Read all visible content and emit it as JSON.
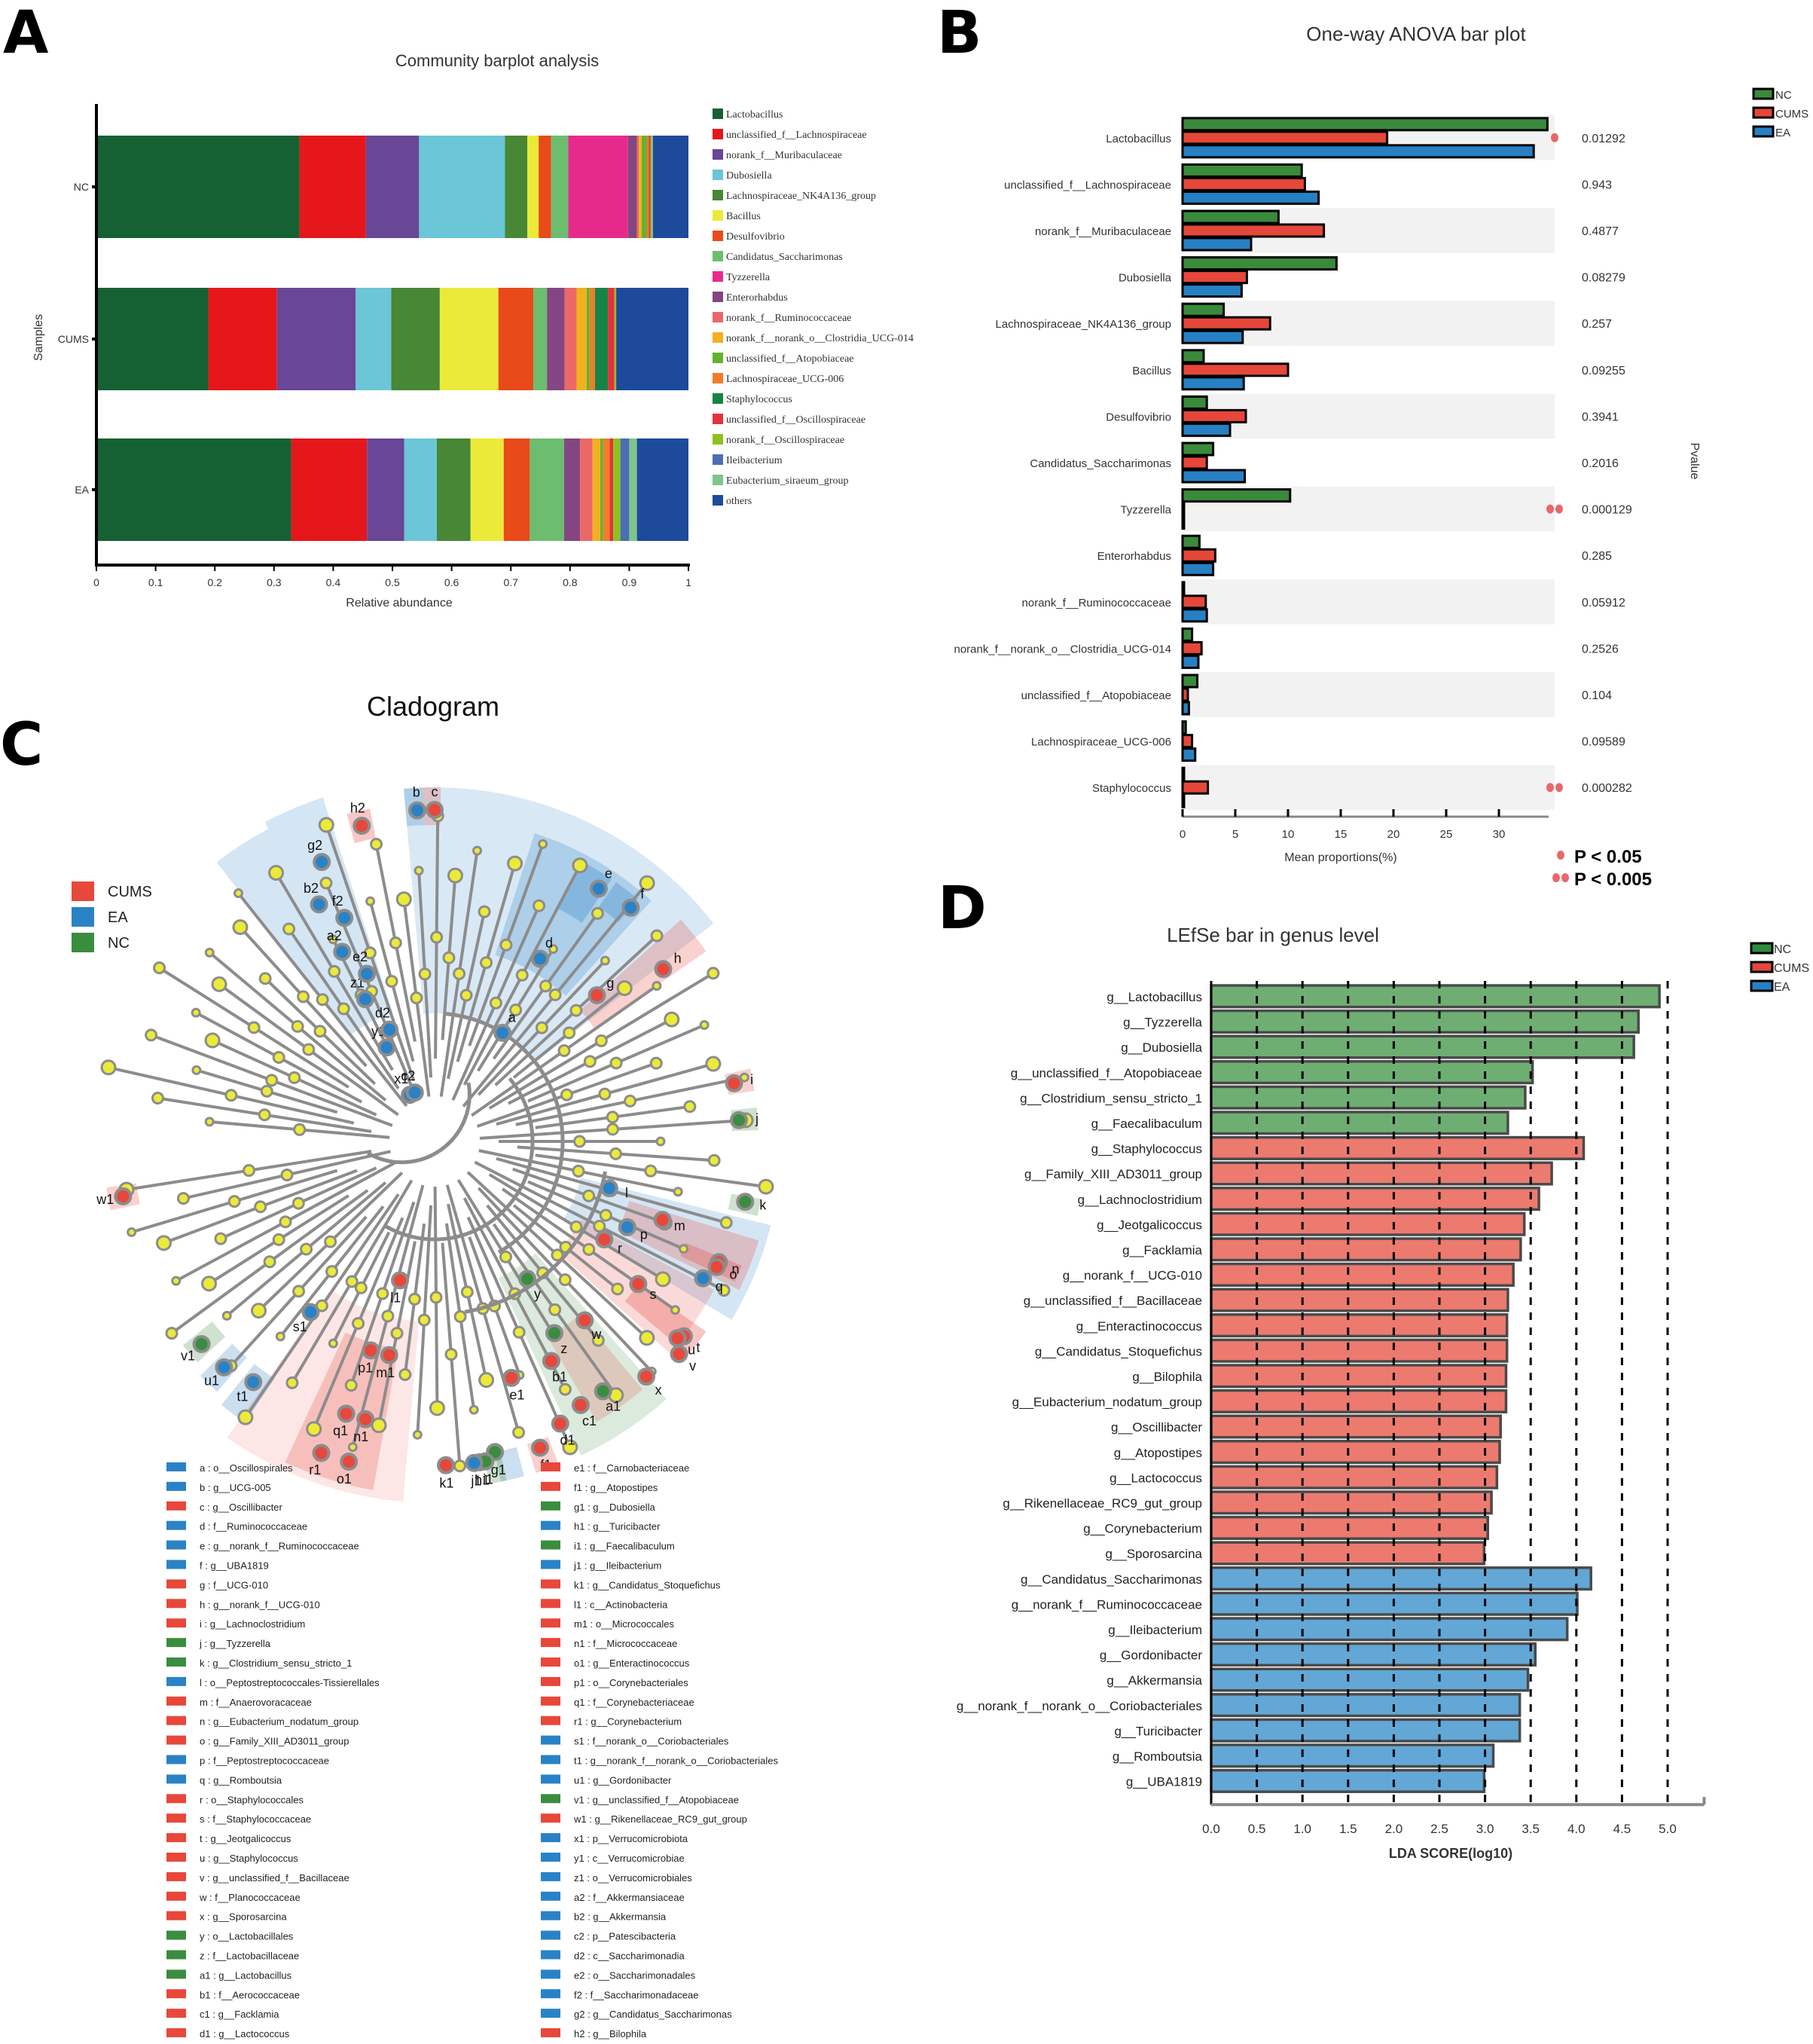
{
  "figure": {
    "panel_letters": [
      "A",
      "B",
      "C",
      "D"
    ]
  },
  "chart_data": [
    {
      "id": "A",
      "type": "bar",
      "orientation": "horizontal-stacked",
      "title": "Community barplot analysis",
      "xlabel": "Relative abundance",
      "ylabel": "Samples",
      "xlim": [
        0,
        1
      ],
      "xticks": [
        "0",
        "0.1",
        "0.2",
        "0.3",
        "0.4",
        "0.5",
        "0.6",
        "0.7",
        "0.8",
        "0.9",
        "1"
      ],
      "categories": [
        "NC",
        "CUMS",
        "EA"
      ],
      "legend_position": "right",
      "series": [
        {
          "name": "Lactobacillus",
          "color": "#156133",
          "values": [
            0.343,
            0.189,
            0.329
          ]
        },
        {
          "name": "unclassified_f__Lachnospiraceae",
          "color": "#e5171b",
          "values": [
            0.112,
            0.116,
            0.128
          ]
        },
        {
          "name": "norank_f__Muribaculaceae",
          "color": "#694696",
          "values": [
            0.09,
            0.133,
            0.063
          ]
        },
        {
          "name": "Dubosiella",
          "color": "#6bc6d7",
          "values": [
            0.145,
            0.06,
            0.055
          ]
        },
        {
          "name": "Lachnospiraceae_NK4A136_group",
          "color": "#478735",
          "values": [
            0.038,
            0.082,
            0.057
          ]
        },
        {
          "name": "Bacillus",
          "color": "#ecea38",
          "values": [
            0.019,
            0.099,
            0.056
          ]
        },
        {
          "name": "Desulfovibrio",
          "color": "#e84a1a",
          "values": [
            0.021,
            0.059,
            0.044
          ]
        },
        {
          "name": "Candidatus_Saccharimonas",
          "color": "#6dbd6f",
          "values": [
            0.029,
            0.023,
            0.058
          ]
        },
        {
          "name": "Tyzzerella",
          "color": "#e62a8b",
          "values": [
            0.101,
            0.0,
            0.0
          ]
        },
        {
          "name": "Enterorhabdus",
          "color": "#844682",
          "values": [
            0.015,
            0.03,
            0.027
          ]
        },
        {
          "name": "norank_f__Ruminococcaceae",
          "color": "#eb6868",
          "values": [
            0.003,
            0.02,
            0.021
          ]
        },
        {
          "name": "norank_f__norank_o__Clostridia_UCG-014",
          "color": "#f2b021",
          "values": [
            0.005,
            0.017,
            0.013
          ]
        },
        {
          "name": "unclassified_f__Atopobiaceae",
          "color": "#66b22e",
          "values": [
            0.009,
            0.005,
            0.005
          ]
        },
        {
          "name": "Lachnospiraceae_UCG-006",
          "color": "#f17c2a",
          "values": [
            0.003,
            0.009,
            0.011
          ]
        },
        {
          "name": "Staphylococcus",
          "color": "#168446",
          "values": [
            0.0,
            0.022,
            0.0
          ]
        },
        {
          "name": "unclassified_f__Oscillospiraceae",
          "color": "#e5323a",
          "values": [
            0.003,
            0.011,
            0.006
          ]
        },
        {
          "name": "norank_f__Oscillospiraceae",
          "color": "#8dc21f",
          "values": [
            0.002,
            0.003,
            0.012
          ]
        },
        {
          "name": "Ileibacterium",
          "color": "#4b6db4",
          "values": [
            0.0,
            0.0,
            0.015
          ]
        },
        {
          "name": "Eubacterium_siraeum_group",
          "color": "#7fc48a",
          "values": [
            0.002,
            0.0,
            0.013
          ]
        },
        {
          "name": "others",
          "color": "#1e4a9c",
          "values": [
            0.06,
            0.122,
            0.087
          ]
        }
      ]
    },
    {
      "id": "B",
      "type": "bar",
      "orientation": "horizontal-grouped",
      "title": "One-way ANOVA bar plot",
      "xlabel": "Mean proportions(%)",
      "ylabel_right": "Pvalue",
      "xlim": [
        0,
        35
      ],
      "xticks": [
        "0",
        "5",
        "10",
        "15",
        "20",
        "25",
        "30"
      ],
      "legend_position": "top-right",
      "groups": [
        {
          "name": "NC",
          "color": "#3a8a3c"
        },
        {
          "name": "CUMS",
          "color": "#e5473a"
        },
        {
          "name": "EA",
          "color": "#2780c4"
        }
      ],
      "categories": [
        "Lactobacillus",
        "unclassified_f__Lachnospiraceae",
        "norank_f__Muribaculaceae",
        "Dubosiella",
        "Lachnospiraceae_NK4A136_group",
        "Bacillus",
        "Desulfovibrio",
        "Candidatus_Saccharimonas",
        "Tyzzerella",
        "Enterorhabdus",
        "norank_f__Ruminococcaceae",
        "norank_f__norank_o__Clostridia_UCG-014",
        "unclassified_f__Atopobiaceae",
        "Lachnospiraceae_UCG-006",
        "Staphylococcus"
      ],
      "series": [
        {
          "name": "NC",
          "values": [
            34.6,
            11.3,
            9.1,
            14.6,
            3.9,
            2.0,
            2.3,
            2.9,
            10.2,
            1.6,
            0.1,
            0.9,
            1.4,
            0.3,
            0.05
          ]
        },
        {
          "name": "CUMS",
          "values": [
            19.4,
            11.6,
            13.4,
            6.1,
            8.3,
            10.0,
            6.0,
            2.3,
            0.05,
            3.1,
            2.2,
            1.8,
            0.5,
            0.9,
            2.4
          ]
        },
        {
          "name": "EA",
          "values": [
            33.3,
            12.9,
            6.5,
            5.6,
            5.7,
            5.8,
            4.5,
            5.9,
            0.05,
            2.9,
            2.3,
            1.5,
            0.6,
            1.2,
            0.05
          ]
        }
      ],
      "pvalues": [
        "0.01292",
        "0.943",
        "0.4877",
        "0.08279",
        "0.257",
        "0.09255",
        "0.3941",
        "0.2016",
        "0.000129",
        "0.285",
        "0.05912",
        "0.2526",
        "0.104",
        "0.09589",
        "0.000282"
      ],
      "significance_dots": [
        1,
        0,
        0,
        0,
        0,
        0,
        0,
        0,
        2,
        0,
        0,
        0,
        0,
        0,
        2
      ],
      "significance_legend": [
        {
          "dots": 1,
          "label": "P < 0.05"
        },
        {
          "dots": 2,
          "label": "P < 0.005"
        }
      ],
      "dot_color": "#e8676a"
    },
    {
      "id": "C",
      "type": "diagram",
      "title": "Cladogram",
      "legend_position": "top-left",
      "groups": [
        {
          "name": "CUMS",
          "color": "#e8473b"
        },
        {
          "name": "EA",
          "color": "#2a82c6"
        },
        {
          "name": "NC",
          "color": "#3a8d3f"
        }
      ],
      "taxa": [
        {
          "key": "a",
          "name": "o__Oscillospirales",
          "group": "EA"
        },
        {
          "key": "b",
          "name": "g__UCG-005",
          "group": "EA"
        },
        {
          "key": "c",
          "name": "g__Oscillibacter",
          "group": "CUMS"
        },
        {
          "key": "d",
          "name": "f__Ruminococcaceae",
          "group": "EA"
        },
        {
          "key": "e",
          "name": "g__norank_f__Ruminococcaceae",
          "group": "EA"
        },
        {
          "key": "f",
          "name": "g__UBA1819",
          "group": "EA"
        },
        {
          "key": "g",
          "name": "f__UCG-010",
          "group": "CUMS"
        },
        {
          "key": "h",
          "name": "g__norank_f__UCG-010",
          "group": "CUMS"
        },
        {
          "key": "i",
          "name": "g__Lachnoclostridium",
          "group": "CUMS"
        },
        {
          "key": "j",
          "name": "g__Tyzzerella",
          "group": "NC"
        },
        {
          "key": "k",
          "name": "g__Clostridium_sensu_stricto_1",
          "group": "NC"
        },
        {
          "key": "l",
          "name": "o__Peptostreptococcales-Tissierellales",
          "group": "EA"
        },
        {
          "key": "m",
          "name": "f__Anaerovoracaceae",
          "group": "CUMS"
        },
        {
          "key": "n",
          "name": "g__Eubacterium_nodatum_group",
          "group": "CUMS"
        },
        {
          "key": "o",
          "name": "g__Family_XIII_AD3011_group",
          "group": "CUMS"
        },
        {
          "key": "p",
          "name": "f__Peptostreptococcaceae",
          "group": "EA"
        },
        {
          "key": "q",
          "name": "g__Romboutsia",
          "group": "EA"
        },
        {
          "key": "r",
          "name": "o__Staphylococcales",
          "group": "CUMS"
        },
        {
          "key": "s",
          "name": "f__Staphylococcaceae",
          "group": "CUMS"
        },
        {
          "key": "t",
          "name": "g__Jeotgalicoccus",
          "group": "CUMS"
        },
        {
          "key": "u",
          "name": "g__Staphylococcus",
          "group": "CUMS"
        },
        {
          "key": "v",
          "name": "g__unclassified_f__Bacillaceae",
          "group": "CUMS"
        },
        {
          "key": "w",
          "name": "f__Planococcaceae",
          "group": "CUMS"
        },
        {
          "key": "x",
          "name": "g__Sporosarcina",
          "group": "CUMS"
        },
        {
          "key": "y",
          "name": "o__Lactobacillales",
          "group": "NC"
        },
        {
          "key": "z",
          "name": "f__Lactobacillaceae",
          "group": "NC"
        },
        {
          "key": "a1",
          "name": "g__Lactobacillus",
          "group": "NC"
        },
        {
          "key": "b1",
          "name": "f__Aerococcaceae",
          "group": "CUMS"
        },
        {
          "key": "c1",
          "name": "g__Facklamia",
          "group": "CUMS"
        },
        {
          "key": "d1",
          "name": "g__Lactococcus",
          "group": "CUMS"
        },
        {
          "key": "e1",
          "name": "f__Carnobacteriaceae",
          "group": "CUMS"
        },
        {
          "key": "f1",
          "name": "g__Atopostipes",
          "group": "CUMS"
        },
        {
          "key": "g1",
          "name": "g__Dubosiella",
          "group": "NC"
        },
        {
          "key": "h1",
          "name": "g__Turicibacter",
          "group": "EA"
        },
        {
          "key": "i1",
          "name": "g__Faecalibaculum",
          "group": "NC"
        },
        {
          "key": "j1",
          "name": "g__Ileibacterium",
          "group": "EA"
        },
        {
          "key": "k1",
          "name": "g__Candidatus_Stoquefichus",
          "group": "CUMS"
        },
        {
          "key": "l1",
          "name": "c__Actinobacteria",
          "group": "CUMS"
        },
        {
          "key": "m1",
          "name": "o__Micrococcales",
          "group": "CUMS"
        },
        {
          "key": "n1",
          "name": "f__Micrococcaceae",
          "group": "CUMS"
        },
        {
          "key": "o1",
          "name": "g__Enteractinococcus",
          "group": "CUMS"
        },
        {
          "key": "p1",
          "name": "o__Corynebacteriales",
          "group": "CUMS"
        },
        {
          "key": "q1",
          "name": "f__Corynebacteriaceae",
          "group": "CUMS"
        },
        {
          "key": "r1",
          "name": "g__Corynebacterium",
          "group": "CUMS"
        },
        {
          "key": "s1",
          "name": "f__norank_o__Coriobacteriales",
          "group": "EA"
        },
        {
          "key": "t1",
          "name": "g__norank_f__norank_o__Coriobacteriales",
          "group": "EA"
        },
        {
          "key": "u1",
          "name": "g__Gordonibacter",
          "group": "EA"
        },
        {
          "key": "v1",
          "name": "g__unclassified_f__Atopobiaceae",
          "group": "NC"
        },
        {
          "key": "w1",
          "name": "g__Rikenellaceae_RC9_gut_group",
          "group": "CUMS"
        },
        {
          "key": "x1",
          "name": "p__Verrucomicrobiota",
          "group": "EA"
        },
        {
          "key": "y1",
          "name": "c__Verrucomicrobiae",
          "group": "EA"
        },
        {
          "key": "z1",
          "name": "o__Verrucomicrobiales",
          "group": "EA"
        },
        {
          "key": "a2",
          "name": "f__Akkermansiaceae",
          "group": "EA"
        },
        {
          "key": "b2",
          "name": "g__Akkermansia",
          "group": "EA"
        },
        {
          "key": "c2",
          "name": "p__Patescibacteria",
          "group": "EA"
        },
        {
          "key": "d2",
          "name": "c__Saccharimonadia",
          "group": "EA"
        },
        {
          "key": "e2",
          "name": "o__Saccharimonadales",
          "group": "EA"
        },
        {
          "key": "f2",
          "name": "f__Saccharimonadaceae",
          "group": "EA"
        },
        {
          "key": "g2",
          "name": "g__Candidatus_Saccharimonas",
          "group": "EA"
        },
        {
          "key": "h2",
          "name": "g__Bilophila",
          "group": "CUMS"
        }
      ]
    },
    {
      "id": "D",
      "type": "bar",
      "orientation": "horizontal",
      "title": "LEfSe bar in genus level",
      "xlabel": "LDA SCORE(log10)",
      "xlim": [
        0,
        5.4
      ],
      "xticks": [
        "0.0",
        "0.5",
        "1.0",
        "1.5",
        "2.0",
        "2.5",
        "3.0",
        "3.5",
        "4.0",
        "4.5",
        "5.0"
      ],
      "grid": "dashed-vertical",
      "legend_position": "top-right",
      "groups": [
        {
          "name": "NC",
          "color": "#6fae73"
        },
        {
          "name": "CUMS",
          "color": "#ec7a6f"
        },
        {
          "name": "EA",
          "color": "#62a7d6"
        }
      ],
      "legend_colors": {
        "NC": "#2f8a3e",
        "CUMS": "#e5473a",
        "EA": "#2780c4"
      },
      "bars": [
        {
          "label": "g__Lactobacillus",
          "group": "NC",
          "value": 4.91
        },
        {
          "label": "g__Tyzzerella",
          "group": "NC",
          "value": 4.68
        },
        {
          "label": "g__Dubosiella",
          "group": "NC",
          "value": 4.63
        },
        {
          "label": "g__unclassified_f__Atopobiaceae",
          "group": "NC",
          "value": 3.52
        },
        {
          "label": "g__Clostridium_sensu_stricto_1",
          "group": "NC",
          "value": 3.44
        },
        {
          "label": "g__Faecalibaculum",
          "group": "NC",
          "value": 3.25
        },
        {
          "label": "g__Staphylococcus",
          "group": "CUMS",
          "value": 4.08
        },
        {
          "label": "g__Family_XIII_AD3011_group",
          "group": "CUMS",
          "value": 3.73
        },
        {
          "label": "g__Lachnoclostridium",
          "group": "CUMS",
          "value": 3.59
        },
        {
          "label": "g__Jeotgalicoccus",
          "group": "CUMS",
          "value": 3.43
        },
        {
          "label": "g__Facklamia",
          "group": "CUMS",
          "value": 3.39
        },
        {
          "label": "g__norank_f__UCG-010",
          "group": "CUMS",
          "value": 3.31
        },
        {
          "label": "g__unclassified_f__Bacillaceae",
          "group": "CUMS",
          "value": 3.25
        },
        {
          "label": "g__Enteractinococcus",
          "group": "CUMS",
          "value": 3.24
        },
        {
          "label": "g__Candidatus_Stoquefichus",
          "group": "CUMS",
          "value": 3.24
        },
        {
          "label": "g__Bilophila",
          "group": "CUMS",
          "value": 3.23
        },
        {
          "label": "g__Eubacterium_nodatum_group",
          "group": "CUMS",
          "value": 3.23
        },
        {
          "label": "g__Oscillibacter",
          "group": "CUMS",
          "value": 3.17
        },
        {
          "label": "g__Atopostipes",
          "group": "CUMS",
          "value": 3.16
        },
        {
          "label": "g__Lactococcus",
          "group": "CUMS",
          "value": 3.13
        },
        {
          "label": "g__Rikenellaceae_RC9_gut_group",
          "group": "CUMS",
          "value": 3.07
        },
        {
          "label": "g__Corynebacterium",
          "group": "CUMS",
          "value": 3.03
        },
        {
          "label": "g__Sporosarcina",
          "group": "CUMS",
          "value": 2.99
        },
        {
          "label": "g__Candidatus_Saccharimonas",
          "group": "EA",
          "value": 4.16
        },
        {
          "label": "g__norank_f__Ruminococcaceae",
          "group": "EA",
          "value": 4.01
        },
        {
          "label": "g__Ileibacterium",
          "group": "EA",
          "value": 3.9
        },
        {
          "label": "g__Gordonibacter",
          "group": "EA",
          "value": 3.55
        },
        {
          "label": "g__Akkermansia",
          "group": "EA",
          "value": 3.47
        },
        {
          "label": "g__norank_f__norank_o__Coriobacteriales",
          "group": "EA",
          "value": 3.38
        },
        {
          "label": "g__Turicibacter",
          "group": "EA",
          "value": 3.38
        },
        {
          "label": "g__Romboutsia",
          "group": "EA",
          "value": 3.09
        },
        {
          "label": "g__UBA1819",
          "group": "EA",
          "value": 2.99
        }
      ]
    }
  ]
}
